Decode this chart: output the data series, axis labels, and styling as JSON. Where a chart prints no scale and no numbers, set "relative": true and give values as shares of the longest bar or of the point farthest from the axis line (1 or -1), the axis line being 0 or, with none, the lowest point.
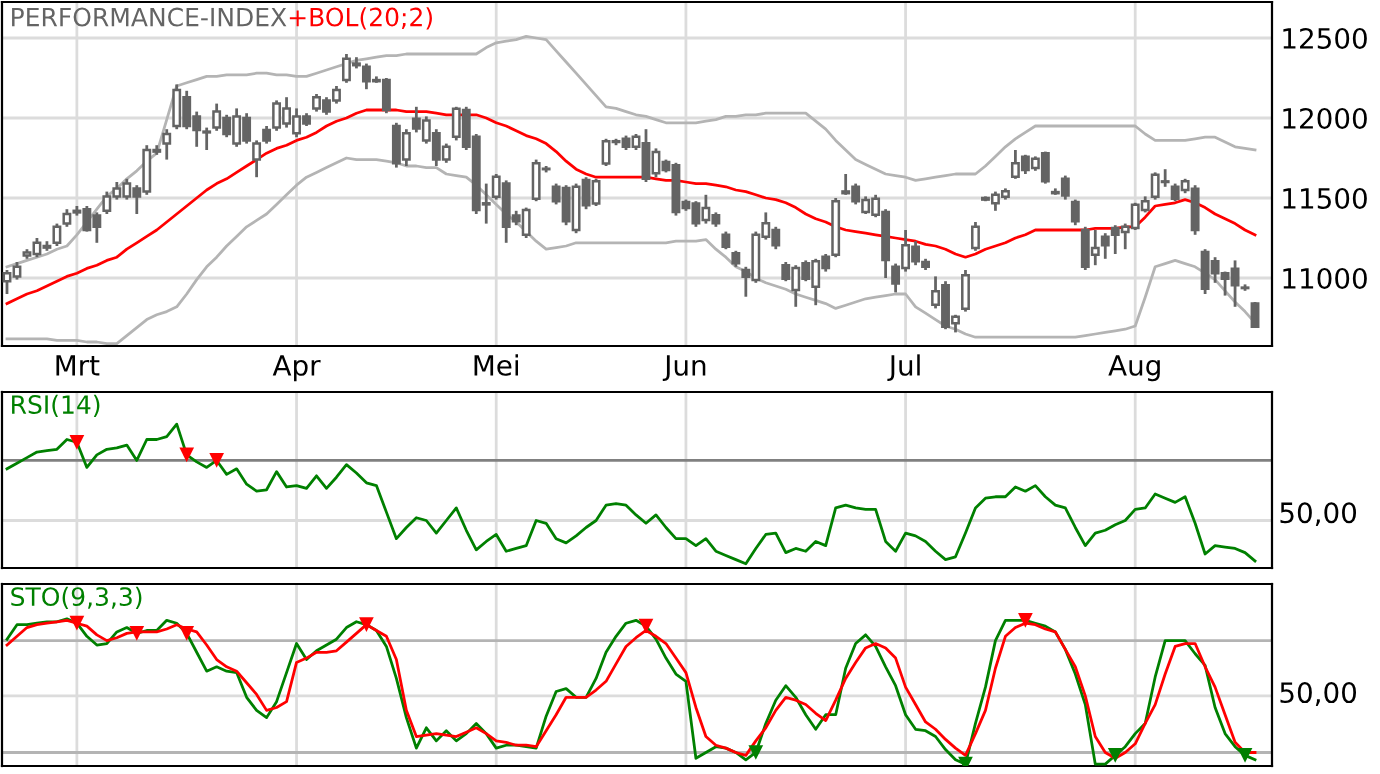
{
  "chart_data": [
    {
      "type": "candlestick",
      "title": "PERFORMANCE-INDEX",
      "color": "#646464",
      "categories": [
        null,
        null,
        null,
        null,
        null,
        null,
        null,
        "Mrt",
        null,
        null,
        null,
        null,
        null,
        null,
        null,
        null,
        null,
        null,
        null,
        null,
        null,
        null,
        null,
        null,
        null,
        null,
        null,
        null,
        null,
        "Apr",
        null,
        null,
        null,
        null,
        null,
        null,
        null,
        null,
        null,
        null,
        null,
        null,
        null,
        null,
        null,
        null,
        null,
        null,
        null,
        "Mei",
        null,
        null,
        null,
        null,
        null,
        null,
        null,
        null,
        null,
        null,
        null,
        null,
        null,
        null,
        null,
        null,
        null,
        null,
        "Jun",
        null,
        null,
        null,
        null,
        null,
        null,
        null,
        null,
        null,
        null,
        null,
        null,
        null,
        null,
        null,
        null,
        null,
        null,
        null,
        null,
        null,
        "Jul",
        null,
        null,
        null,
        null,
        null,
        null,
        null,
        null,
        null,
        null,
        null,
        null,
        null,
        null,
        null,
        null,
        null,
        null,
        null,
        null,
        null,
        null,
        "Aug",
        null,
        null,
        null,
        null,
        null,
        null,
        null,
        null,
        null,
        null,
        null,
        null
      ],
      "ohlc": [
        [
          10980,
          11050,
          10900,
          11030
        ],
        [
          11010,
          11100,
          10990,
          11070
        ],
        [
          11140,
          11180,
          11120,
          11160
        ],
        [
          11150,
          11250,
          11130,
          11220
        ],
        [
          11190,
          11230,
          11170,
          11200
        ],
        [
          11220,
          11340,
          11200,
          11320
        ],
        [
          11340,
          11430,
          11320,
          11400
        ],
        [
          11410,
          11450,
          11390,
          11420
        ],
        [
          11430,
          11450,
          11290,
          11300
        ],
        [
          11390,
          11410,
          11220,
          11320
        ],
        [
          11420,
          11540,
          11400,
          11510
        ],
        [
          11510,
          11600,
          11490,
          11560
        ],
        [
          11510,
          11620,
          11490,
          11590
        ],
        [
          11560,
          11580,
          11400,
          11510
        ],
        [
          11540,
          11830,
          11520,
          11800
        ],
        [
          11790,
          11830,
          11770,
          11800
        ],
        [
          11840,
          11930,
          11740,
          11900
        ],
        [
          11950,
          12210,
          11930,
          12175
        ],
        [
          12130,
          12170,
          11930,
          11950
        ],
        [
          12010,
          12040,
          11820,
          11925
        ],
        [
          11915,
          11940,
          11800,
          11910
        ],
        [
          11940,
          12090,
          11920,
          12040
        ],
        [
          12000,
          12020,
          11880,
          11900
        ],
        [
          11840,
          12060,
          11820,
          12010
        ],
        [
          12000,
          12030,
          11840,
          11860
        ],
        [
          11740,
          11860,
          11630,
          11840
        ],
        [
          11925,
          11950,
          11840,
          11860
        ],
        [
          11940,
          12110,
          11920,
          12090
        ],
        [
          11965,
          12130,
          11940,
          12060
        ],
        [
          11905,
          12060,
          11880,
          12010
        ],
        [
          12010,
          12030,
          11950,
          11965
        ],
        [
          12060,
          12150,
          12040,
          12130
        ],
        [
          12110,
          12130,
          12020,
          12040
        ],
        [
          12110,
          12200,
          12090,
          12175
        ],
        [
          12237,
          12400,
          12220,
          12370
        ],
        [
          12330,
          12380,
          12310,
          12340
        ],
        [
          12320,
          12340,
          12180,
          12230
        ],
        [
          12230,
          12260,
          12220,
          12237
        ],
        [
          12237,
          12250,
          12030,
          12050
        ],
        [
          11950,
          11970,
          11690,
          11717
        ],
        [
          11740,
          11930,
          11700,
          11905
        ],
        [
          11995,
          12070,
          11910,
          11935
        ],
        [
          11860,
          12010,
          11840,
          11985
        ],
        [
          11905,
          11930,
          11700,
          11740
        ],
        [
          11740,
          11840,
          11720,
          11820
        ],
        [
          11883,
          12070,
          11860,
          12058
        ],
        [
          12050,
          12070,
          11800,
          11820
        ],
        [
          11883,
          11900,
          11400,
          11425
        ],
        [
          11460,
          11590,
          11340,
          11467
        ],
        [
          11508,
          11650,
          11490,
          11633
        ],
        [
          11590,
          11610,
          11220,
          11320
        ],
        [
          11390,
          11420,
          11330,
          11355
        ],
        [
          11270,
          11440,
          11250,
          11425
        ],
        [
          11495,
          11740,
          11480,
          11717
        ],
        [
          11680,
          11700,
          11660,
          11683
        ],
        [
          11570,
          11590,
          11460,
          11480
        ],
        [
          11562,
          11580,
          11330,
          11355
        ],
        [
          11300,
          11590,
          11280,
          11570
        ],
        [
          11612,
          11630,
          11430,
          11455
        ],
        [
          11466,
          11620,
          11450,
          11604
        ],
        [
          11716,
          11870,
          11700,
          11855
        ],
        [
          11850,
          11870,
          11830,
          11855
        ],
        [
          11870,
          11890,
          11800,
          11820
        ],
        [
          11820,
          11900,
          11800,
          11883
        ],
        [
          11842,
          11930,
          11600,
          11620
        ],
        [
          11654,
          11810,
          11630,
          11787
        ],
        [
          11725,
          11740,
          11660,
          11675
        ],
        [
          11705,
          11720,
          11390,
          11412
        ],
        [
          11475,
          11490,
          11420,
          11437
        ],
        [
          11466,
          11480,
          11320,
          11342
        ],
        [
          11362,
          11520,
          11340,
          11437
        ],
        [
          11392,
          11410,
          11320,
          11342
        ],
        [
          11270,
          11290,
          11180,
          11196
        ],
        [
          11154,
          11170,
          11070,
          11092
        ],
        [
          11050,
          11070,
          10883,
          11008
        ],
        [
          10987,
          11290,
          10970,
          11270
        ],
        [
          11258,
          11410,
          11240,
          11342
        ],
        [
          11300,
          11320,
          11180,
          11205
        ],
        [
          11079,
          11100,
          10980,
          10996
        ],
        [
          10925,
          11080,
          10820,
          11062
        ],
        [
          11092,
          11110,
          10980,
          10996
        ],
        [
          10946,
          11120,
          10830,
          11104
        ],
        [
          11133,
          11150,
          11040,
          11062
        ],
        [
          11146,
          11500,
          11130,
          11479
        ],
        [
          11530,
          11650,
          11520,
          11541
        ],
        [
          11570,
          11590,
          11460,
          11479
        ],
        [
          11412,
          11510,
          11400,
          11487
        ],
        [
          11395,
          11520,
          11380,
          11495
        ],
        [
          11412,
          11430,
          11000,
          11112
        ],
        [
          11070,
          11090,
          10910,
          10966
        ],
        [
          11062,
          11300,
          11040,
          11204
        ],
        [
          11196,
          11230,
          11080,
          11104
        ],
        [
          11100,
          11120,
          11050,
          11070
        ],
        [
          10833,
          11010,
          10810,
          10917
        ],
        [
          10954,
          10980,
          10680,
          10696
        ],
        [
          10717,
          10770,
          10660,
          10758
        ],
        [
          10808,
          11050,
          10790,
          11017
        ],
        [
          11187,
          11350,
          11170,
          11321
        ],
        [
          11490,
          11510,
          11480,
          11500
        ],
        [
          11467,
          11540,
          11420,
          11521
        ],
        [
          11508,
          11560,
          11490,
          11542
        ],
        [
          11633,
          11800,
          11620,
          11717
        ],
        [
          11758,
          11770,
          11650,
          11675
        ],
        [
          11688,
          11760,
          11670,
          11746
        ],
        [
          11779,
          11790,
          11590,
          11604
        ],
        [
          11530,
          11560,
          11520,
          11537
        ],
        [
          11621,
          11640,
          11490,
          11516
        ],
        [
          11475,
          11490,
          11330,
          11354
        ],
        [
          11300,
          11320,
          11050,
          11071
        ],
        [
          11146,
          11300,
          11080,
          11187
        ],
        [
          11258,
          11280,
          11120,
          11204
        ],
        [
          11312,
          11330,
          11150,
          11270
        ],
        [
          11288,
          11340,
          11180,
          11321
        ],
        [
          11312,
          11470,
          11300,
          11458
        ],
        [
          11425,
          11510,
          11410,
          11479
        ],
        [
          11508,
          11660,
          11490,
          11646
        ],
        [
          11600,
          11680,
          11570,
          11604
        ],
        [
          11571,
          11590,
          11480,
          11496
        ],
        [
          11550,
          11620,
          11530,
          11604
        ],
        [
          11558,
          11580,
          11270,
          11300
        ],
        [
          11163,
          11180,
          10900,
          10933
        ],
        [
          11104,
          11130,
          10970,
          11029
        ],
        [
          11029,
          11040,
          10890,
          10996
        ],
        [
          11058,
          11110,
          10820,
          10954
        ],
        [
          10940,
          10960,
          10920,
          10937
        ],
        [
          10841,
          10850,
          10690,
          10696
        ]
      ],
      "series": [
        {
          "type": "line",
          "color": "#b4b4b4",
          "values": [
            11070,
            11090,
            11110,
            11130,
            11150,
            11180,
            11200,
            11270,
            11350,
            11430,
            11510,
            11560,
            11620,
            11670,
            11730,
            11780,
            11990,
            12200,
            12220,
            12240,
            12260,
            12260,
            12270,
            12270,
            12270,
            12280,
            12280,
            12270,
            12270,
            12260,
            12260,
            12280,
            12300,
            12320,
            12340,
            12360,
            12370,
            12380,
            12390,
            12390,
            12400,
            12400,
            12400,
            12400,
            12400,
            12400,
            12400,
            12400,
            12440,
            12470,
            12480,
            12490,
            12510,
            12500,
            12490,
            12420,
            12350,
            12280,
            12210,
            12140,
            12070,
            12060,
            12040,
            12020,
            12010,
            11990,
            11970,
            11970,
            11970,
            11970,
            11980,
            11990,
            12010,
            12010,
            12020,
            12020,
            12030,
            12030,
            12030,
            12030,
            12030,
            11980,
            11930,
            11860,
            11800,
            11740,
            11710,
            11680,
            11650,
            11640,
            11630,
            11610,
            11620,
            11630,
            11640,
            11650,
            11650,
            11650,
            11700,
            11760,
            11820,
            11870,
            11910,
            11950,
            11950,
            11950,
            11950,
            11950,
            11950,
            11950,
            11950,
            11950,
            11950,
            11950,
            11900,
            11860,
            11860,
            11860,
            11860,
            11870,
            11880,
            11880,
            11850,
            11820,
            11810,
            11800
          ]
        },
        {
          "type": "line",
          "color": "#b4b4b4",
          "values": [
            10620,
            10620,
            10620,
            10620,
            10620,
            10610,
            10610,
            10610,
            10600,
            10600,
            10590,
            10590,
            10640,
            10690,
            10740,
            10770,
            10790,
            10820,
            10900,
            10990,
            11070,
            11130,
            11200,
            11260,
            11320,
            11360,
            11400,
            11460,
            11520,
            11580,
            11630,
            11660,
            11690,
            11720,
            11750,
            11740,
            11740,
            11740,
            11730,
            11720,
            11700,
            11700,
            11690,
            11690,
            11650,
            11640,
            11630,
            11580,
            11520,
            11460,
            11400,
            11350,
            11290,
            11230,
            11180,
            11190,
            11200,
            11220,
            11220,
            11220,
            11220,
            11220,
            11220,
            11220,
            11220,
            11220,
            11220,
            11230,
            11230,
            11230,
            11240,
            11180,
            11130,
            11070,
            11040,
            11000,
            10970,
            10950,
            10930,
            10900,
            10880,
            10860,
            10840,
            10810,
            10830,
            10850,
            10870,
            10880,
            10890,
            10900,
            10900,
            10820,
            10780,
            10740,
            10700,
            10680,
            10650,
            10630,
            10630,
            10630,
            10630,
            10630,
            10630,
            10630,
            10630,
            10630,
            10630,
            10630,
            10640,
            10650,
            10660,
            10670,
            10680,
            10700,
            10880,
            11070,
            11090,
            11110,
            11090,
            11070,
            11030,
            10990,
            10920,
            10850,
            10790,
            10720
          ]
        },
        {
          "type": "line",
          "name": "+BOL(20;2)",
          "color": "#ff0000",
          "values": [
            10840,
            10870,
            10900,
            10920,
            10950,
            10980,
            11010,
            11030,
            11060,
            11080,
            11110,
            11130,
            11180,
            11220,
            11260,
            11300,
            11350,
            11400,
            11450,
            11500,
            11550,
            11590,
            11620,
            11660,
            11700,
            11740,
            11780,
            11810,
            11830,
            11860,
            11880,
            11910,
            11950,
            11980,
            12000,
            12030,
            12050,
            12050,
            12050,
            12050,
            12040,
            12040,
            12040,
            12030,
            12020,
            12020,
            12020,
            12020,
            12000,
            11970,
            11950,
            11920,
            11890,
            11870,
            11840,
            11790,
            11730,
            11680,
            11650,
            11630,
            11630,
            11630,
            11630,
            11630,
            11630,
            11620,
            11610,
            11610,
            11600,
            11590,
            11590,
            11580,
            11570,
            11550,
            11540,
            11520,
            11500,
            11490,
            11470,
            11440,
            11400,
            11370,
            11350,
            11320,
            11300,
            11290,
            11280,
            11270,
            11260,
            11250,
            11240,
            11230,
            11210,
            11200,
            11180,
            11150,
            11130,
            11150,
            11180,
            11200,
            11220,
            11250,
            11270,
            11300,
            11300,
            11300,
            11300,
            11300,
            11300,
            11310,
            11310,
            11310,
            11320,
            11320,
            11380,
            11450,
            11460,
            11470,
            11490,
            11470,
            11440,
            11400,
            11370,
            11340,
            11300,
            11270
          ]
        }
      ],
      "ylim": [
        10575,
        12725
      ],
      "yticks": [
        11000,
        11500,
        12000,
        12500
      ],
      "grid": true,
      "legend": "top left"
    },
    {
      "type": "line",
      "relative": true,
      "categories": [
        null,
        null,
        null,
        null,
        null,
        null,
        null,
        null,
        null,
        null,
        null,
        null,
        null,
        null,
        null,
        null,
        null,
        null,
        null,
        null,
        null,
        null,
        null,
        null,
        null,
        null,
        null,
        null,
        null,
        null,
        null,
        null,
        null,
        null,
        null,
        null,
        null,
        null,
        null,
        null,
        null,
        null,
        null,
        null,
        null,
        null,
        null,
        null,
        null,
        null,
        null,
        null,
        null,
        null,
        null,
        null,
        null,
        null,
        null,
        null,
        null,
        null,
        null,
        null,
        null,
        null,
        null,
        null,
        null,
        null,
        null,
        null,
        null,
        null,
        null,
        null,
        null,
        null,
        null,
        null,
        null,
        null,
        null,
        null,
        null,
        null,
        null,
        null,
        null,
        null,
        null,
        null,
        null,
        null,
        null,
        null,
        null,
        null,
        null,
        null,
        null,
        null,
        null,
        null,
        null,
        null,
        null,
        null,
        null,
        null,
        null,
        null,
        null,
        null,
        null,
        null,
        null,
        null,
        null,
        null,
        null,
        null,
        null,
        null,
        null,
        null
      ],
      "series": [
        {
          "name": "RSI(14)",
          "color": "#008000",
          "values": [
            0.68,
            0.72,
            0.76,
            0.8,
            0.81,
            0.82,
            0.89,
            0.87,
            0.69,
            0.78,
            0.82,
            0.83,
            0.85,
            0.74,
            0.89,
            0.89,
            0.91,
            1,
            0.78,
            0.73,
            0.69,
            0.74,
            0.64,
            0.68,
            0.57,
            0.52,
            0.53,
            0.66,
            0.55,
            0.56,
            0.54,
            0.63,
            0.54,
            0.62,
            0.71,
            0.65,
            0.58,
            0.56,
            0.37,
            0.18,
            0.26,
            0.33,
            0.31,
            0.22,
            0.31,
            0.4,
            0.24,
            0.1,
            0.16,
            0.21,
            0.09,
            0.11,
            0.13,
            0.31,
            0.29,
            0.18,
            0.15,
            0.2,
            0.26,
            0.31,
            0.42,
            0.43,
            0.42,
            0.35,
            0.29,
            0.35,
            0.26,
            0.18,
            0.18,
            0.13,
            0.18,
            0.09,
            0.06,
            0.03,
            0,
            0.11,
            0.21,
            0.22,
            0.08,
            0.11,
            0.09,
            0.16,
            0.13,
            0.4,
            0.42,
            0.4,
            0.39,
            0.39,
            0.16,
            0.09,
            0.22,
            0.2,
            0.16,
            0.09,
            0.03,
            0.05,
            0.22,
            0.4,
            0.47,
            0.48,
            0.48,
            0.55,
            0.52,
            0.56,
            0.48,
            0.42,
            0.4,
            0.26,
            0.13,
            0.22,
            0.24,
            0.28,
            0.31,
            0.39,
            0.4,
            0.5,
            0.47,
            0.44,
            0.48,
            0.29,
            0.07,
            0.13,
            0.12,
            0.11,
            0.08,
            0.02
          ]
        },
        {
          "type": "scatter",
          "color": "#ff0000",
          "marker": "triangle",
          "values": [
            null,
            null,
            null,
            null,
            null,
            null,
            null,
            0.87,
            null,
            null,
            null,
            null,
            null,
            null,
            null,
            null,
            null,
            null,
            0.78,
            null,
            null,
            0.74,
            null,
            null,
            null,
            null,
            null,
            null,
            null,
            null,
            null,
            null,
            null,
            null,
            null,
            null,
            null,
            null,
            null,
            null,
            null,
            null,
            null,
            null,
            null,
            null,
            null,
            null,
            null,
            null,
            null,
            null,
            null,
            null,
            null,
            null,
            null,
            null,
            null,
            null,
            null,
            null,
            null,
            null,
            null,
            null,
            null,
            null,
            null,
            null,
            null,
            null,
            null,
            null,
            null,
            null,
            null,
            null,
            null,
            null,
            null,
            null,
            null,
            null,
            null,
            null,
            null,
            null,
            null,
            null,
            null,
            null,
            null,
            null,
            null,
            null,
            null,
            null,
            null,
            null,
            null,
            null,
            null,
            null,
            null,
            null,
            null,
            null,
            null,
            null,
            null,
            null,
            null,
            null,
            null,
            null,
            null,
            null,
            null,
            null,
            null,
            null,
            null,
            null,
            null,
            null
          ]
        }
      ],
      "grid": "x",
      "legend": "top left",
      "annotations": [
        "50,00"
      ],
      "ref_lines": [
        {
          "axis": "y",
          "value": 0.74,
          "color": "#808080"
        },
        {
          "axis": "y",
          "value": 0.31,
          "color": "#dcdcdc"
        }
      ]
    },
    {
      "type": "line",
      "relative": true,
      "categories": [
        null,
        null,
        null,
        null,
        null,
        null,
        null,
        null,
        null,
        null,
        null,
        null,
        null,
        null,
        null,
        null,
        null,
        null,
        null,
        null,
        null,
        null,
        null,
        null,
        null,
        null,
        null,
        null,
        null,
        null,
        null,
        null,
        null,
        null,
        null,
        null,
        null,
        null,
        null,
        null,
        null,
        null,
        null,
        null,
        null,
        null,
        null,
        null,
        null,
        null,
        null,
        null,
        null,
        null,
        null,
        null,
        null,
        null,
        null,
        null,
        null,
        null,
        null,
        null,
        null,
        null,
        null,
        null,
        null,
        null,
        null,
        null,
        null,
        null,
        null,
        null,
        null,
        null,
        null,
        null,
        null,
        null,
        null,
        null,
        null,
        null,
        null,
        null,
        null,
        null,
        null,
        null,
        null,
        null,
        null,
        null,
        null,
        null,
        null,
        null,
        null,
        null,
        null,
        null,
        null,
        null,
        null,
        null,
        null,
        null,
        null,
        null,
        null,
        null,
        null,
        null,
        null,
        null,
        null,
        null,
        null,
        null,
        null,
        null,
        null,
        null
      ],
      "series": [
        {
          "name": "STO(9,3,3)",
          "color": "#008000",
          "values": [
            0.86,
            0.96,
            0.96,
            0.97,
            0.98,
            0.98,
            1,
            0.97,
            0.88,
            0.82,
            0.83,
            0.91,
            0.94,
            0.9,
            0.92,
            0.92,
            0.99,
            0.97,
            0.9,
            0.77,
            0.64,
            0.67,
            0.64,
            0.63,
            0.46,
            0.37,
            0.32,
            0.43,
            0.63,
            0.83,
            0.72,
            0.78,
            0.82,
            0.86,
            0.94,
            0.98,
            0.96,
            0.92,
            0.81,
            0.59,
            0.32,
            0.11,
            0.25,
            0.16,
            0.23,
            0.16,
            0.21,
            0.28,
            0.21,
            0.11,
            0.13,
            0.13,
            0.12,
            0.11,
            0.33,
            0.5,
            0.52,
            0.46,
            0.46,
            0.59,
            0.77,
            0.88,
            0.97,
            0.99,
            0.95,
            0.86,
            0.73,
            0.62,
            0.57,
            0.04,
            0.08,
            0.12,
            0.11,
            0.08,
            0.03,
            0.08,
            0.28,
            0.44,
            0.54,
            0.46,
            0.34,
            0.24,
            0.34,
            0.34,
            0.66,
            0.83,
            0.89,
            0.81,
            0.67,
            0.54,
            0.34,
            0.24,
            0.23,
            0.19,
            0.1,
            0.03,
            0,
            0.28,
            0.53,
            0.85,
            0.99,
            0.99,
            0.99,
            0.97,
            0.95,
            0.91,
            0.79,
            0.62,
            0.41,
            0,
            0,
            0.06,
            0.12,
            0.21,
            0.28,
            0.6,
            0.85,
            0.85,
            0.85,
            0.76,
            0.68,
            0.39,
            0.21,
            0.12,
            0.06,
            0.03
          ]
        },
        {
          "color": "#ff0000",
          "values": [
            0.82,
            0.88,
            0.94,
            0.96,
            0.97,
            0.98,
            0.99,
            0.97,
            0.95,
            0.89,
            0.85,
            0.87,
            0.9,
            0.91,
            0.91,
            0.91,
            0.93,
            0.96,
            0.93,
            0.91,
            0.82,
            0.72,
            0.67,
            0.64,
            0.56,
            0.48,
            0.37,
            0.39,
            0.43,
            0.7,
            0.73,
            0.77,
            0.77,
            0.78,
            0.84,
            0.9,
            0.96,
            0.92,
            0.88,
            0.72,
            0.37,
            0.19,
            0.2,
            0.21,
            0.2,
            0.19,
            0.22,
            0.25,
            0.21,
            0.16,
            0.15,
            0.13,
            0.13,
            0.12,
            0.23,
            0.34,
            0.46,
            0.46,
            0.46,
            0.51,
            0.57,
            0.69,
            0.81,
            0.87,
            0.92,
            0.88,
            0.83,
            0.73,
            0.63,
            0.39,
            0.19,
            0.13,
            0.11,
            0.08,
            0.06,
            0.16,
            0.25,
            0.37,
            0.46,
            0.44,
            0.41,
            0.35,
            0.3,
            0.44,
            0.59,
            0.7,
            0.8,
            0.83,
            0.8,
            0.73,
            0.53,
            0.41,
            0.29,
            0.24,
            0.17,
            0.11,
            0.06,
            0.21,
            0.37,
            0.66,
            0.88,
            0.94,
            0.97,
            0.96,
            0.93,
            0.91,
            0.79,
            0.67,
            0.47,
            0.19,
            0.08,
            0.04,
            0.08,
            0.14,
            0.28,
            0.41,
            0.62,
            0.81,
            0.83,
            0.83,
            0.67,
            0.53,
            0.34,
            0.15,
            0.08,
            0.08
          ]
        },
        {
          "type": "scatter",
          "color": "#ff0000",
          "marker": "triangle",
          "values": [
            null,
            null,
            null,
            null,
            null,
            null,
            null,
            0.97,
            null,
            null,
            null,
            null,
            null,
            0.9,
            null,
            null,
            null,
            null,
            0.9,
            null,
            null,
            null,
            null,
            null,
            null,
            null,
            null,
            null,
            null,
            null,
            null,
            null,
            null,
            null,
            null,
            null,
            0.96,
            null,
            null,
            null,
            null,
            null,
            null,
            null,
            null,
            null,
            null,
            null,
            null,
            null,
            null,
            null,
            null,
            null,
            null,
            null,
            null,
            null,
            null,
            null,
            null,
            null,
            null,
            null,
            0.95,
            null,
            null,
            null,
            null,
            null,
            null,
            null,
            null,
            null,
            null,
            null,
            null,
            null,
            null,
            null,
            null,
            null,
            null,
            null,
            null,
            null,
            null,
            null,
            null,
            null,
            null,
            null,
            null,
            null,
            null,
            null,
            null,
            null,
            null,
            null,
            null,
            null,
            0.99,
            null,
            null,
            null,
            null,
            null,
            null,
            null,
            null,
            null,
            null,
            null,
            null,
            null,
            null,
            null,
            null,
            null,
            null,
            null,
            null,
            null,
            null,
            null
          ]
        },
        {
          "type": "scatter",
          "color": "#008000",
          "marker": "triangle",
          "values": [
            null,
            null,
            null,
            null,
            null,
            null,
            null,
            null,
            null,
            null,
            null,
            null,
            null,
            null,
            null,
            null,
            null,
            null,
            null,
            null,
            null,
            null,
            null,
            null,
            null,
            null,
            null,
            null,
            null,
            null,
            null,
            null,
            null,
            null,
            null,
            null,
            null,
            null,
            null,
            null,
            null,
            null,
            null,
            null,
            null,
            null,
            null,
            null,
            null,
            null,
            null,
            null,
            null,
            null,
            null,
            null,
            null,
            null,
            null,
            null,
            null,
            null,
            null,
            null,
            null,
            null,
            null,
            null,
            null,
            null,
            null,
            null,
            null,
            null,
            null,
            0.08,
            null,
            null,
            null,
            null,
            null,
            null,
            null,
            null,
            null,
            null,
            null,
            null,
            null,
            null,
            null,
            null,
            null,
            null,
            null,
            null,
            0,
            null,
            null,
            null,
            null,
            null,
            null,
            null,
            null,
            null,
            null,
            null,
            null,
            null,
            null,
            0.06,
            null,
            null,
            null,
            null,
            null,
            null,
            null,
            null,
            null,
            null,
            null,
            null,
            0.06,
            null
          ]
        }
      ],
      "grid": "x",
      "legend": "top left",
      "annotations": [
        "50,00"
      ],
      "ref_lines": [
        {
          "axis": "y",
          "value": 0.85,
          "color": "#b4b4b4"
        },
        {
          "axis": "y",
          "value": 0.08,
          "color": "#b4b4b4"
        },
        {
          "axis": "y",
          "value": 0.47,
          "color": "#dcdcdc"
        }
      ]
    }
  ]
}
